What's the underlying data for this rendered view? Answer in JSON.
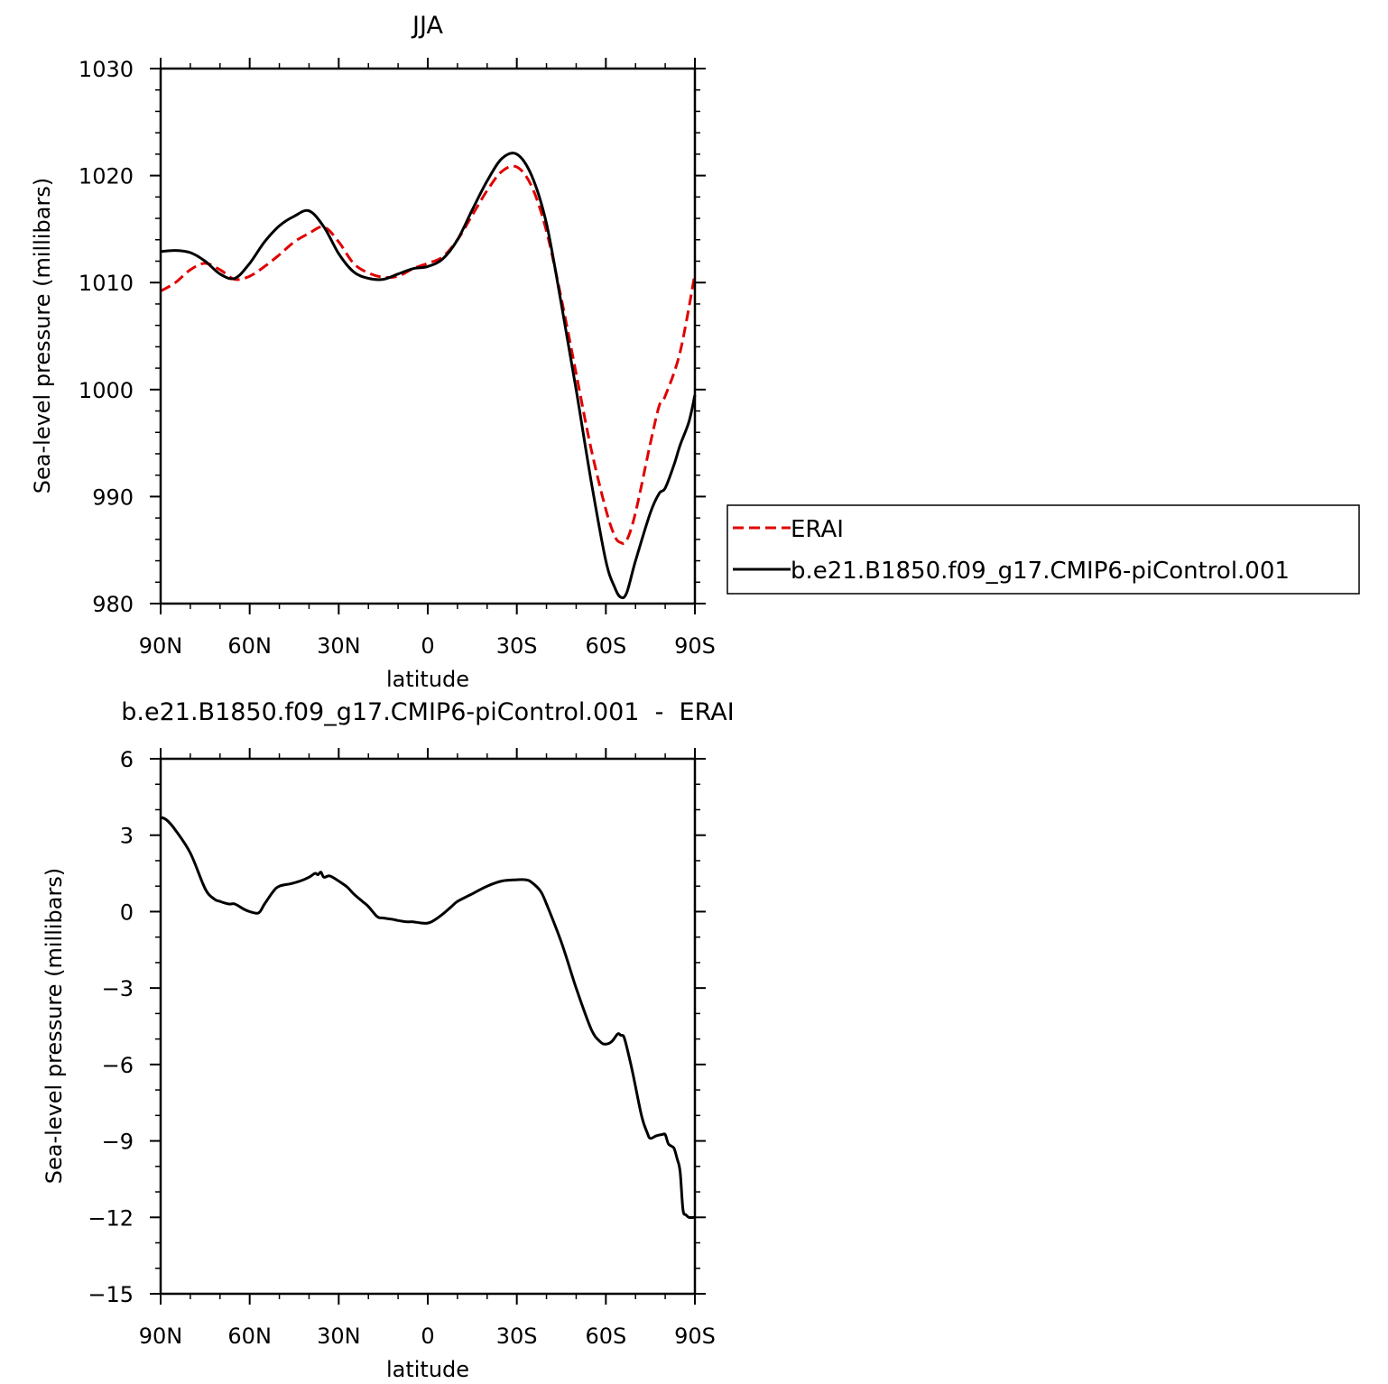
{
  "chart_data": [
    {
      "type": "line",
      "title": "JJA",
      "xlabel": "latitude",
      "ylabel": "Sea-level pressure (millibars)",
      "xlim": [
        90,
        -90
      ],
      "ylim": [
        980,
        1030
      ],
      "x_ticks": [
        {
          "value": 90,
          "label": "90N"
        },
        {
          "value": 60,
          "label": "60N"
        },
        {
          "value": 30,
          "label": "30N"
        },
        {
          "value": 0,
          "label": "0"
        },
        {
          "value": -30,
          "label": "30S"
        },
        {
          "value": -60,
          "label": "60S"
        },
        {
          "value": -90,
          "label": "90S"
        }
      ],
      "y_ticks": [
        {
          "value": 980,
          "label": "980"
        },
        {
          "value": 990,
          "label": "990"
        },
        {
          "value": 1000,
          "label": "1000"
        },
        {
          "value": 1010,
          "label": "1010"
        },
        {
          "value": 1020,
          "label": "1020"
        },
        {
          "value": 1030,
          "label": "1030"
        }
      ],
      "legend": {
        "placement": "right",
        "entries": [
          {
            "label": "ERAI",
            "color": "#e00000",
            "dash": "dashed"
          },
          {
            "label": "b.e21.B1850.f09_g17.CMIP6-piControl.001",
            "color": "#000000",
            "dash": "solid"
          }
        ]
      },
      "series": [
        {
          "name": "ERAI",
          "color": "#e00000",
          "dash": "dashed",
          "x": [
            90,
            85,
            80,
            75,
            70,
            65,
            60,
            55,
            50,
            45,
            40,
            35,
            30,
            25,
            20,
            15,
            10,
            5,
            0,
            -5,
            -10,
            -15,
            -20,
            -25,
            -30,
            -35,
            -40,
            -45,
            -50,
            -55,
            -60,
            -63,
            -65,
            -67,
            -70,
            -75,
            -78,
            -80,
            -85,
            -90
          ],
          "y": [
            1009.2,
            1010.0,
            1011.2,
            1011.8,
            1011.2,
            1010.3,
            1010.6,
            1011.5,
            1012.6,
            1013.8,
            1014.6,
            1015.2,
            1013.8,
            1011.8,
            1010.9,
            1010.5,
            1010.6,
            1011.3,
            1011.8,
            1012.4,
            1014.0,
            1016.3,
            1018.6,
            1020.4,
            1020.8,
            1019.0,
            1014.8,
            1008.5,
            1001.5,
            994.5,
            988.8,
            986.3,
            985.7,
            985.9,
            988.5,
            995.0,
            998.5,
            999.4,
            1003.5,
            1010.8
          ]
        },
        {
          "name": "b.e21.B1850.f09_g17.CMIP6-piControl.001",
          "color": "#000000",
          "dash": "solid",
          "x": [
            90,
            85,
            80,
            75,
            70,
            65,
            60,
            55,
            50,
            45,
            40,
            35,
            30,
            25,
            20,
            15,
            10,
            5,
            0,
            -5,
            -10,
            -15,
            -20,
            -25,
            -30,
            -35,
            -40,
            -45,
            -50,
            -55,
            -60,
            -63,
            -65,
            -67,
            -70,
            -75,
            -78,
            -80,
            -83,
            -85,
            -88,
            -90
          ],
          "y": [
            1012.9,
            1013.0,
            1012.8,
            1012.0,
            1010.8,
            1010.4,
            1011.8,
            1013.8,
            1015.3,
            1016.2,
            1016.7,
            1015.2,
            1012.7,
            1011.0,
            1010.4,
            1010.3,
            1010.8,
            1011.3,
            1011.5,
            1012.2,
            1014.0,
            1016.8,
            1019.5,
            1021.6,
            1022.0,
            1020.0,
            1015.5,
            1008.0,
            1000.0,
            991.5,
            984.0,
            981.5,
            980.6,
            981.0,
            984.0,
            988.5,
            990.3,
            990.8,
            993.0,
            994.8,
            997.0,
            999.5
          ]
        }
      ]
    },
    {
      "type": "line",
      "title": "b.e21.B1850.f09_g17.CMIP6-piControl.001  -  ERAI",
      "xlabel": "latitude",
      "ylabel": "Sea-level pressure (millibars)",
      "xlim": [
        90,
        -90
      ],
      "ylim": [
        -15,
        6
      ],
      "x_ticks": [
        {
          "value": 90,
          "label": "90N"
        },
        {
          "value": 60,
          "label": "60N"
        },
        {
          "value": 30,
          "label": "30N"
        },
        {
          "value": 0,
          "label": "0"
        },
        {
          "value": -30,
          "label": "30S"
        },
        {
          "value": -60,
          "label": "60S"
        },
        {
          "value": -90,
          "label": "90S"
        }
      ],
      "y_ticks": [
        {
          "value": -15,
          "label": "−15"
        },
        {
          "value": -12,
          "label": "−12"
        },
        {
          "value": -9,
          "label": "−9"
        },
        {
          "value": -6,
          "label": "−6"
        },
        {
          "value": -3,
          "label": "−3"
        },
        {
          "value": 0,
          "label": "0"
        },
        {
          "value": 3,
          "label": "3"
        },
        {
          "value": 6,
          "label": "6"
        }
      ],
      "series": [
        {
          "color": "#000000",
          "dash": "solid",
          "x": [
            90,
            88,
            85,
            80,
            75,
            72,
            70,
            67,
            65,
            62,
            60,
            57,
            55,
            52,
            50,
            46,
            43,
            40,
            38,
            37,
            36,
            35,
            33,
            30,
            27,
            25,
            22,
            20,
            17,
            15,
            12,
            10,
            7,
            5,
            2,
            0,
            -2,
            -5,
            -8,
            -10,
            -15,
            -20,
            -25,
            -30,
            -33,
            -35,
            -38,
            -40,
            -45,
            -50,
            -55,
            -58,
            -60,
            -62,
            -64,
            -65,
            -66,
            -67,
            -69,
            -72,
            -74,
            -75,
            -77,
            -79,
            -80,
            -81,
            -82,
            -83,
            -84,
            -85,
            -86,
            -87,
            -88,
            -90
          ],
          "y": [
            3.7,
            3.6,
            3.2,
            2.3,
            0.9,
            0.5,
            0.4,
            0.3,
            0.3,
            0.1,
            0.0,
            -0.05,
            0.3,
            0.8,
            1.0,
            1.1,
            1.2,
            1.35,
            1.5,
            1.45,
            1.55,
            1.35,
            1.4,
            1.2,
            0.95,
            0.7,
            0.4,
            0.2,
            -0.2,
            -0.25,
            -0.3,
            -0.35,
            -0.4,
            -0.4,
            -0.45,
            -0.45,
            -0.35,
            -0.1,
            0.2,
            0.4,
            0.7,
            1.0,
            1.2,
            1.25,
            1.25,
            1.15,
            0.8,
            0.3,
            -1.2,
            -3.0,
            -4.6,
            -5.1,
            -5.2,
            -5.1,
            -4.8,
            -4.85,
            -4.9,
            -5.3,
            -6.3,
            -8.0,
            -8.7,
            -8.9,
            -8.8,
            -8.75,
            -8.75,
            -9.1,
            -9.2,
            -9.3,
            -9.7,
            -10.2,
            -11.7,
            -11.9,
            -12.0,
            -12.0
          ]
        }
      ]
    }
  ]
}
